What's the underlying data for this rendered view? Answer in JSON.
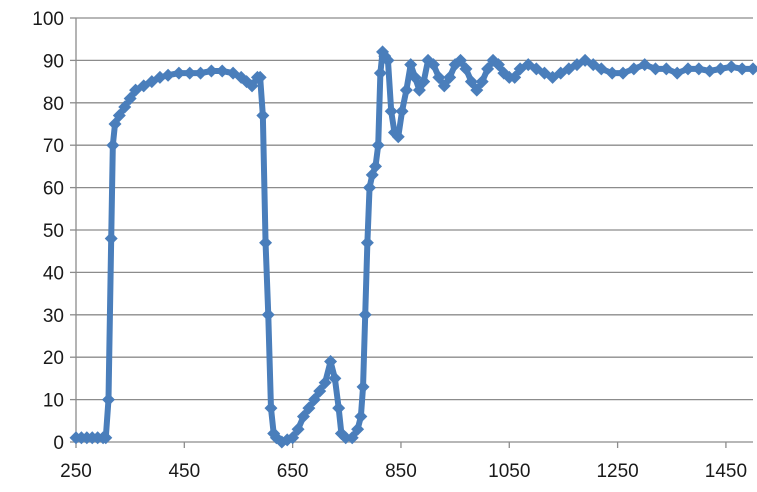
{
  "chart_data": {
    "type": "line",
    "title": "",
    "xlabel": "",
    "ylabel": "",
    "xlim": [
      250,
      1500
    ],
    "ylim": [
      0,
      100
    ],
    "x_ticks": [
      250,
      450,
      650,
      850,
      1050,
      1250,
      1450
    ],
    "y_ticks": [
      0,
      10,
      20,
      30,
      40,
      50,
      60,
      70,
      80,
      90,
      100
    ],
    "grid": "horizontal",
    "legend": "none",
    "series_color": "#4a7ebb",
    "series": [
      {
        "marker": "diamond",
        "points": [
          [
            250,
            1
          ],
          [
            260,
            1
          ],
          [
            270,
            1
          ],
          [
            280,
            1
          ],
          [
            290,
            1
          ],
          [
            300,
            1
          ],
          [
            305,
            1
          ],
          [
            310,
            10
          ],
          [
            315,
            48
          ],
          [
            318,
            70
          ],
          [
            322,
            75
          ],
          [
            330,
            77
          ],
          [
            340,
            79
          ],
          [
            350,
            81
          ],
          [
            360,
            83
          ],
          [
            375,
            84
          ],
          [
            390,
            85
          ],
          [
            405,
            86
          ],
          [
            420,
            86.5
          ],
          [
            440,
            87
          ],
          [
            460,
            87
          ],
          [
            480,
            87
          ],
          [
            500,
            87.5
          ],
          [
            520,
            87.5
          ],
          [
            540,
            87
          ],
          [
            555,
            86
          ],
          [
            565,
            85
          ],
          [
            575,
            84
          ],
          [
            585,
            86
          ],
          [
            590,
            86
          ],
          [
            595,
            77
          ],
          [
            600,
            47
          ],
          [
            605,
            30
          ],
          [
            610,
            8
          ],
          [
            615,
            2
          ],
          [
            620,
            1
          ],
          [
            630,
            0
          ],
          [
            640,
            0.5
          ],
          [
            650,
            1
          ],
          [
            660,
            3
          ],
          [
            670,
            6
          ],
          [
            680,
            8
          ],
          [
            690,
            10
          ],
          [
            700,
            12
          ],
          [
            710,
            14
          ],
          [
            720,
            19
          ],
          [
            728,
            15
          ],
          [
            735,
            8
          ],
          [
            740,
            2
          ],
          [
            748,
            1
          ],
          [
            760,
            1
          ],
          [
            770,
            3
          ],
          [
            776,
            6
          ],
          [
            780,
            13
          ],
          [
            784,
            30
          ],
          [
            788,
            47
          ],
          [
            792,
            60
          ],
          [
            797,
            63
          ],
          [
            803,
            65
          ],
          [
            808,
            70
          ],
          [
            812,
            87
          ],
          [
            816,
            92
          ],
          [
            820,
            91
          ],
          [
            826,
            90
          ],
          [
            832,
            78
          ],
          [
            838,
            73
          ],
          [
            845,
            72
          ],
          [
            852,
            78
          ],
          [
            860,
            83
          ],
          [
            868,
            89
          ],
          [
            876,
            86
          ],
          [
            884,
            83
          ],
          [
            892,
            85
          ],
          [
            900,
            90
          ],
          [
            910,
            89
          ],
          [
            920,
            86
          ],
          [
            930,
            84
          ],
          [
            940,
            86
          ],
          [
            950,
            89
          ],
          [
            960,
            90
          ],
          [
            970,
            88
          ],
          [
            980,
            85
          ],
          [
            990,
            83
          ],
          [
            1000,
            85
          ],
          [
            1010,
            88
          ],
          [
            1020,
            90
          ],
          [
            1030,
            89
          ],
          [
            1040,
            87
          ],
          [
            1050,
            86
          ],
          [
            1060,
            86
          ],
          [
            1070,
            88
          ],
          [
            1085,
            89
          ],
          [
            1100,
            88
          ],
          [
            1115,
            87
          ],
          [
            1130,
            86
          ],
          [
            1145,
            87
          ],
          [
            1160,
            88
          ],
          [
            1175,
            89
          ],
          [
            1190,
            90
          ],
          [
            1205,
            89
          ],
          [
            1220,
            88
          ],
          [
            1240,
            87
          ],
          [
            1260,
            87
          ],
          [
            1280,
            88
          ],
          [
            1300,
            89
          ],
          [
            1320,
            88
          ],
          [
            1340,
            88
          ],
          [
            1360,
            87
          ],
          [
            1380,
            88
          ],
          [
            1400,
            88
          ],
          [
            1420,
            87.5
          ],
          [
            1440,
            88
          ],
          [
            1460,
            88.5
          ],
          [
            1480,
            88
          ],
          [
            1500,
            88
          ]
        ]
      }
    ]
  }
}
